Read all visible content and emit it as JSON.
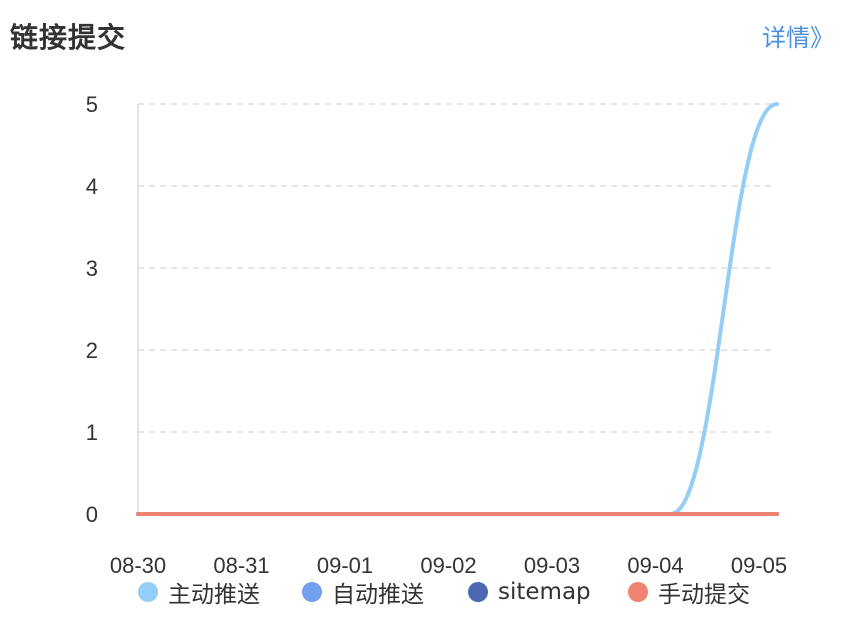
{
  "header": {
    "title": "链接提交",
    "detail_link": "详情》"
  },
  "colors": {
    "series": [
      "#94cdf6",
      "#739eeb",
      "#4b68b0",
      "#ef8270"
    ],
    "grid": "#dddddd",
    "axis": "#dddddd",
    "link": "#4a90e2"
  },
  "chart_data": {
    "type": "line",
    "title": "",
    "xlabel": "",
    "ylabel": "",
    "categories": [
      "08-30",
      "08-31",
      "09-01",
      "09-02",
      "09-03",
      "09-04",
      "09-05"
    ],
    "ylim": [
      0,
      5
    ],
    "yticks": [
      "0",
      "1",
      "2",
      "3",
      "4",
      "5"
    ],
    "grid": "horizontal dashed",
    "legend_position": "bottom",
    "series": [
      {
        "name": "主动推送",
        "values": [
          0,
          0,
          0,
          0,
          0,
          0,
          5
        ]
      },
      {
        "name": "自动推送",
        "values": [
          0,
          0,
          0,
          0,
          0,
          0,
          0
        ]
      },
      {
        "name": "sitemap",
        "values": [
          0,
          0,
          0,
          0,
          0,
          0,
          0
        ]
      },
      {
        "name": "手动提交",
        "values": [
          0,
          0,
          0,
          0,
          0,
          0,
          0
        ]
      }
    ]
  }
}
